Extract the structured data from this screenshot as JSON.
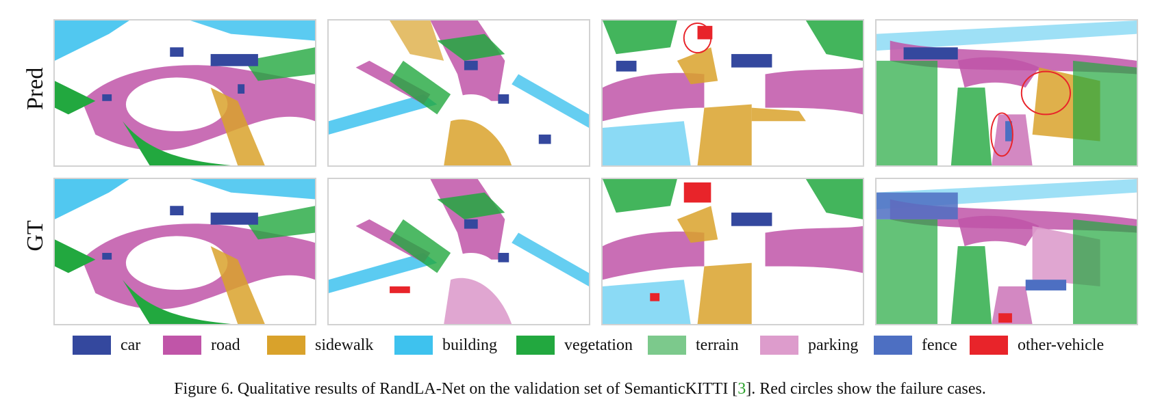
{
  "rows": [
    {
      "label": "Pred"
    },
    {
      "label": "GT"
    }
  ],
  "legend": [
    {
      "label": "car",
      "color": "#34489e"
    },
    {
      "label": "road",
      "color": "#c055a8"
    },
    {
      "label": "sidewalk",
      "color": "#d9a22b"
    },
    {
      "label": "building",
      "color": "#3ec2ee"
    },
    {
      "label": "vegetation",
      "color": "#22a83f"
    },
    {
      "label": "terrain",
      "color": "#7cc98c"
    },
    {
      "label": "parking",
      "color": "#dd9ccc"
    },
    {
      "label": "fence",
      "color": "#4d6fc2"
    },
    {
      "label": "other-vehicle",
      "color": "#e8242a"
    }
  ],
  "caption": {
    "before": "Figure 6. Qualitative results of RandLA-Net on the validation set of SemanticKITTI [",
    "ref": "3",
    "after": "]. Red circles show the failure cases."
  }
}
